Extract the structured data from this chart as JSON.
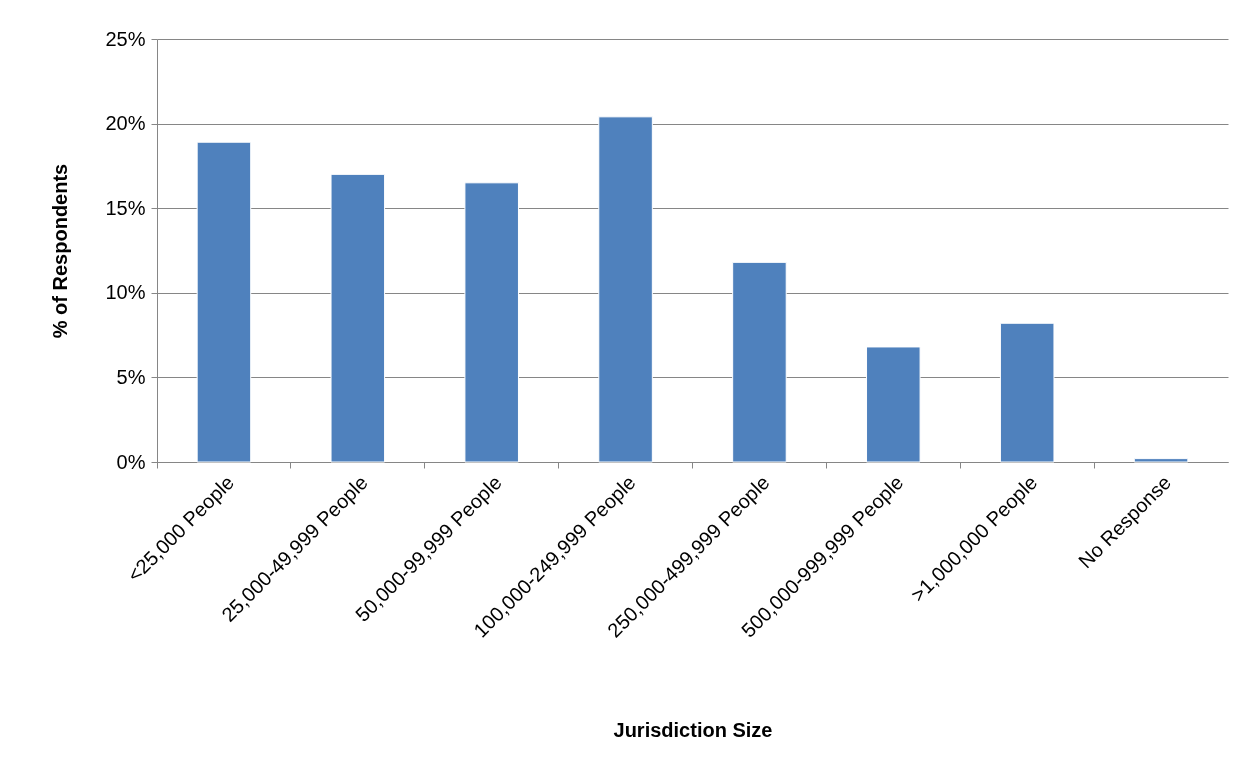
{
  "chart_data": {
    "type": "bar",
    "xlabel": "Jurisdiction Size",
    "ylabel": "% of Respondents",
    "categories": [
      "<25,000 People",
      "25,000-49,999 People",
      "50,000-99,999 People",
      "100,000-249,999 People",
      "250,000-499,999 People",
      "500,000-999,999 People",
      ">1,000,000 People",
      "No Response"
    ],
    "values": [
      18.9,
      17.0,
      16.5,
      20.4,
      11.8,
      6.8,
      8.2,
      0.2
    ],
    "color": "#4f81bd",
    "ylim": [
      0,
      25
    ],
    "yticks": [
      {
        "value": 0,
        "label": "0%"
      },
      {
        "value": 5,
        "label": "5%"
      },
      {
        "value": 10,
        "label": "10%"
      },
      {
        "value": 15,
        "label": "15%"
      },
      {
        "value": 20,
        "label": "20%"
      },
      {
        "value": 25,
        "label": "25%"
      }
    ],
    "grid": "y"
  }
}
